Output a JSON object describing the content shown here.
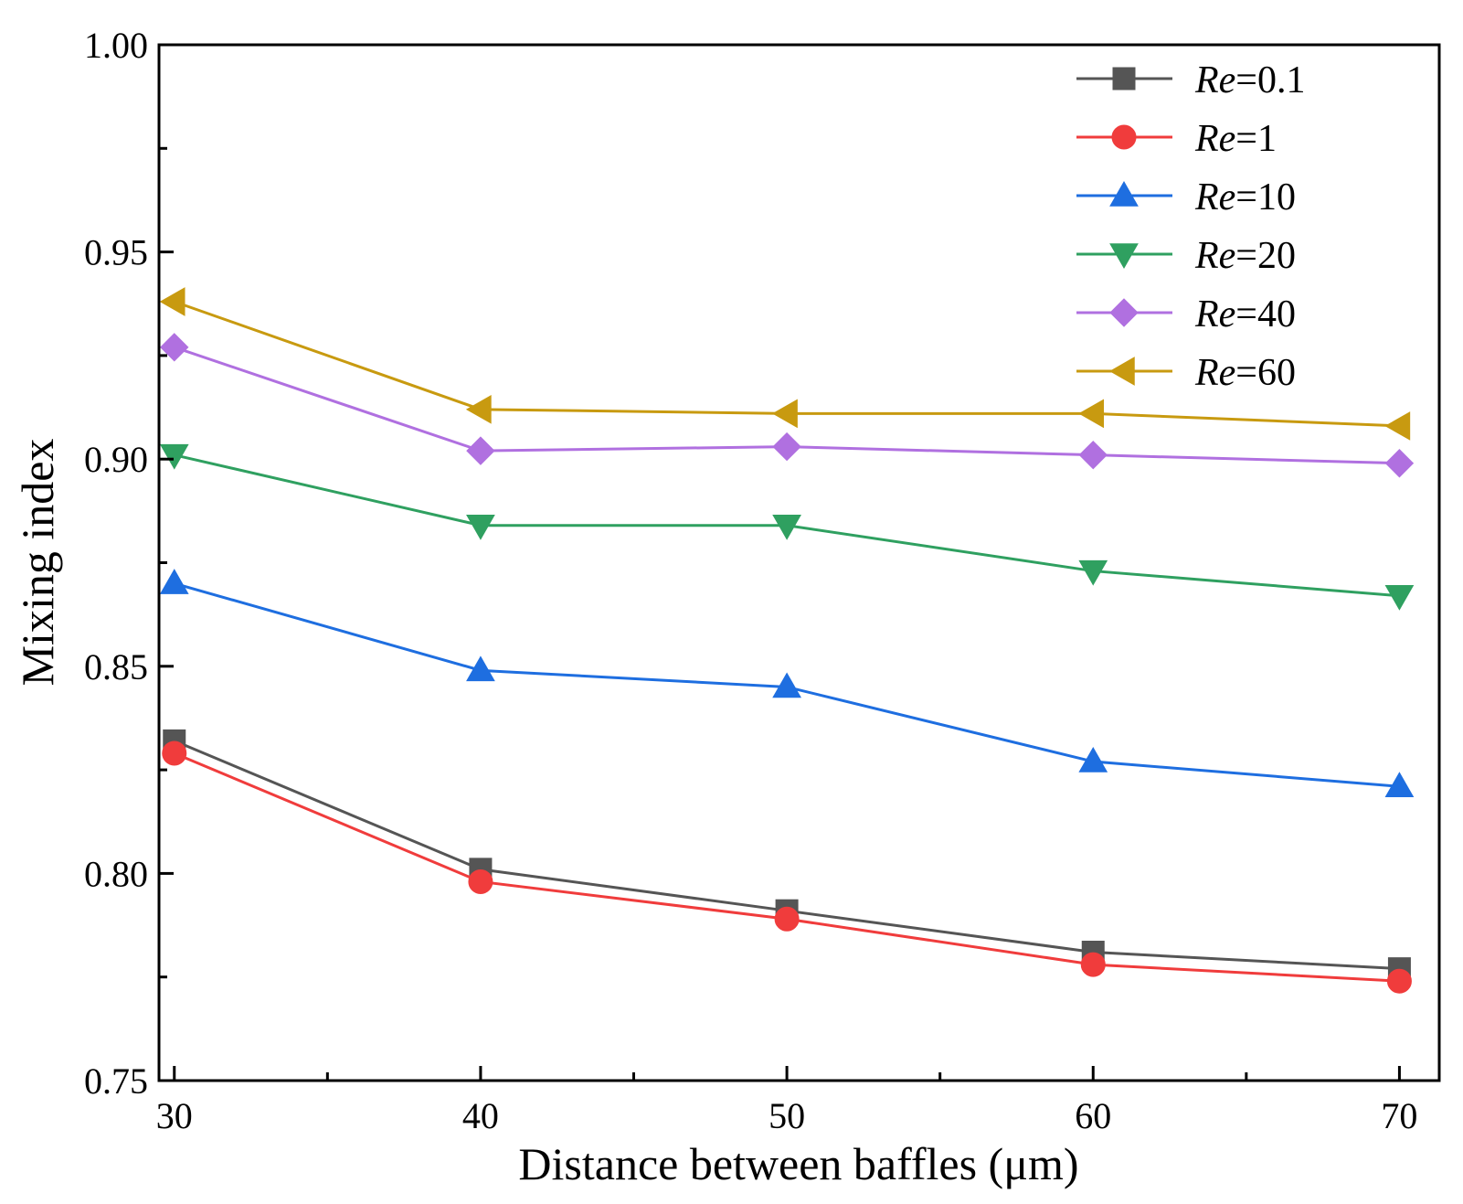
{
  "chart_data": {
    "type": "line",
    "title": "",
    "xlabel": "Distance between baffles (μm)",
    "ylabel": "Mixing index",
    "x": [
      30,
      40,
      50,
      60,
      70
    ],
    "xticks": [
      "30",
      "40",
      "50",
      "60",
      "70"
    ],
    "yticks": [
      "0.75",
      "0.80",
      "0.85",
      "0.90",
      "0.95",
      "1.00"
    ],
    "xlim": [
      29.5,
      71.3
    ],
    "ylim": [
      0.75,
      1.0
    ],
    "grid": false,
    "legend_position": "top-right",
    "series": [
      {
        "name": "Re=0.1",
        "prefix": "Re",
        "suffix": "=0.1",
        "marker": "square",
        "color": "#555555",
        "values": [
          0.832,
          0.801,
          0.791,
          0.781,
          0.777
        ]
      },
      {
        "name": "Re=1",
        "prefix": "Re",
        "suffix": "=1",
        "marker": "circle",
        "color": "#f03c3c",
        "values": [
          0.829,
          0.798,
          0.789,
          0.778,
          0.774
        ]
      },
      {
        "name": "Re=10",
        "prefix": "Re",
        "suffix": "=10",
        "marker": "triangle-up",
        "color": "#1e6ee0",
        "values": [
          0.87,
          0.849,
          0.845,
          0.827,
          0.821
        ]
      },
      {
        "name": "Re=20",
        "prefix": "Re",
        "suffix": "=20",
        "marker": "triangle-down",
        "color": "#2fa060",
        "values": [
          0.901,
          0.884,
          0.884,
          0.873,
          0.867
        ]
      },
      {
        "name": "Re=40",
        "prefix": "Re",
        "suffix": "=40",
        "marker": "diamond",
        "color": "#b070e0",
        "values": [
          0.927,
          0.902,
          0.903,
          0.901,
          0.899
        ]
      },
      {
        "name": "Re=60",
        "prefix": "Re",
        "suffix": "=60",
        "marker": "triangle-left",
        "color": "#c89a10",
        "values": [
          0.938,
          0.912,
          0.911,
          0.911,
          0.908
        ]
      }
    ]
  }
}
